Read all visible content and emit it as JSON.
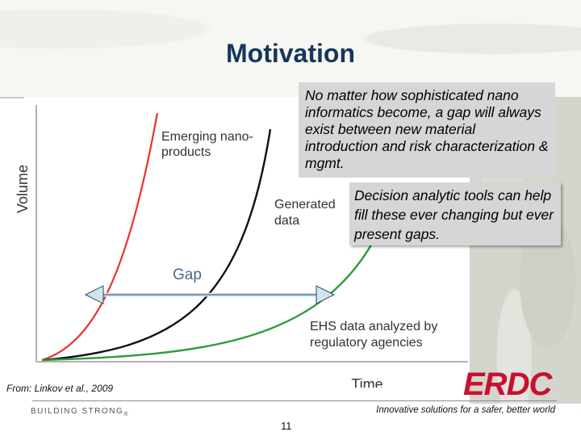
{
  "slide": {
    "title": "Motivation",
    "callout_1": "No matter how sophisticated nano informatics become, a gap will always exist between new material introduction and risk characterization & mgmt.",
    "callout_2": "Decision analytic tools can help fill these ever changing but ever present gaps.",
    "source": "From: Linkov et al., 2009",
    "footer_left": "BUILDING STRONG",
    "footer_mark": "®",
    "footer_right": "Innovative solutions for a safer, better world",
    "page_number": "11",
    "logo_text": "ERDC"
  },
  "chart": {
    "ylabel": "Volume",
    "xlabel": "Time",
    "label_emerging_1": "Emerging nano-",
    "label_emerging_2": "products",
    "label_generated_1": "Generated",
    "label_generated_2": "data",
    "label_ehs_1": "EHS data analyzed by",
    "label_ehs_2": "regulatory agencies",
    "label_gap": "Gap"
  },
  "colors": {
    "title": "#16365c",
    "emerging_curve": "#e8322b",
    "generated_curve": "#111111",
    "ehs_curve": "#2e9b3e",
    "gap_arrow": "#cfe6ef",
    "logo": "#c8102e"
  }
}
